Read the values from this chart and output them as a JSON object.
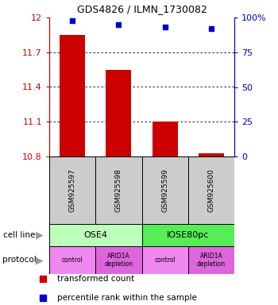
{
  "title": "GDS4826 / ILMN_1730082",
  "samples": [
    "GSM925597",
    "GSM925598",
    "GSM925599",
    "GSM925600"
  ],
  "bar_values": [
    11.85,
    11.55,
    11.1,
    10.83
  ],
  "dot_values": [
    98,
    95,
    93,
    92
  ],
  "ylim_left": [
    10.8,
    12.0
  ],
  "ylim_right": [
    0,
    100
  ],
  "yticks_left": [
    10.8,
    11.1,
    11.4,
    11.7,
    12.0
  ],
  "ytick_labels_left": [
    "10.8",
    "11.1",
    "11.4",
    "11.7",
    "12"
  ],
  "yticks_right": [
    0,
    25,
    50,
    75,
    100
  ],
  "ytick_labels_right": [
    "0",
    "25",
    "50",
    "75",
    "100%"
  ],
  "bar_color": "#cc0000",
  "dot_color": "#0000cc",
  "bar_width": 0.55,
  "cell_line_labels": [
    "OSE4",
    "IOSE80pc"
  ],
  "cell_line_spans": [
    [
      0.5,
      2.5
    ],
    [
      2.5,
      4.5
    ]
  ],
  "cell_line_colors": [
    "#bbffbb",
    "#55ee55"
  ],
  "protocol_labels": [
    "control",
    "ARID1A\ndepletion",
    "control",
    "ARID1A\ndepletion"
  ],
  "protocol_colors": [
    "#ee88ee",
    "#dd66dd",
    "#ee88ee",
    "#dd66dd"
  ],
  "sample_box_color": "#cccccc",
  "legend_red_label": "transformed count",
  "legend_blue_label": "percentile rank within the sample",
  "cell_line_row_label": "cell line",
  "protocol_row_label": "protocol",
  "left_axis_color": "#cc0000",
  "right_axis_color": "#0000cc"
}
